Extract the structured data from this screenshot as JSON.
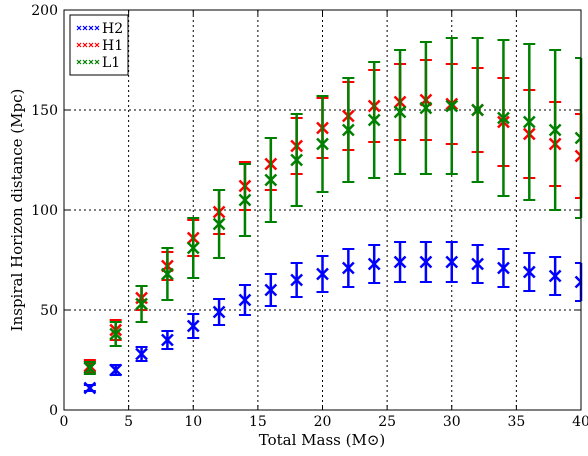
{
  "chart_data": {
    "type": "scatter",
    "xlabel": "Total Mass (M⊙)",
    "ylabel": "Inspiral Horizon distance (Mpc)",
    "xlim": [
      0,
      40
    ],
    "ylim": [
      0,
      200
    ],
    "x_ticks": [
      0,
      5,
      10,
      15,
      20,
      25,
      30,
      35,
      40
    ],
    "y_ticks": [
      0,
      50,
      100,
      150,
      200
    ],
    "grid": true,
    "legend_position": "top-left",
    "x": [
      2,
      4,
      6,
      8,
      10,
      12,
      14,
      16,
      18,
      20,
      22,
      24,
      26,
      28,
      30,
      32,
      34,
      36,
      38,
      40
    ],
    "series": [
      {
        "name": "H2",
        "color": "#0000ff",
        "values": [
          11,
          20,
          28,
          35,
          42,
          49,
          55,
          60,
          65,
          68,
          71,
          73,
          74,
          74,
          74,
          73,
          71,
          69,
          67,
          64
        ],
        "errors": [
          1.5,
          2.5,
          3.5,
          4.5,
          6,
          6.5,
          7.5,
          8,
          8.5,
          9,
          9.5,
          9.5,
          10,
          10,
          10,
          9.5,
          9.5,
          9.5,
          9.5,
          9.5
        ]
      },
      {
        "name": "H1",
        "color": "#ff0000",
        "values": [
          22,
          40,
          56,
          72,
          86,
          99,
          112,
          123,
          132,
          141,
          147,
          152,
          154,
          155,
          153,
          150,
          144,
          138,
          133,
          127
        ],
        "errors": [
          3,
          5,
          6,
          7,
          9,
          11,
          12,
          13,
          14,
          15,
          17,
          18,
          19,
          20,
          20,
          21,
          22,
          22,
          21,
          21
        ]
      },
      {
        "name": "L1",
        "color": "#008000",
        "values": [
          21,
          38,
          53,
          68,
          81,
          93,
          105,
          115,
          125,
          133,
          140,
          145,
          149,
          151,
          152,
          150,
          146,
          144,
          140,
          136
        ],
        "errors": [
          3,
          6,
          9,
          13,
          15,
          17,
          18,
          21,
          23,
          24,
          26,
          29,
          31,
          33,
          34,
          36,
          39,
          39,
          40,
          40
        ]
      }
    ]
  }
}
